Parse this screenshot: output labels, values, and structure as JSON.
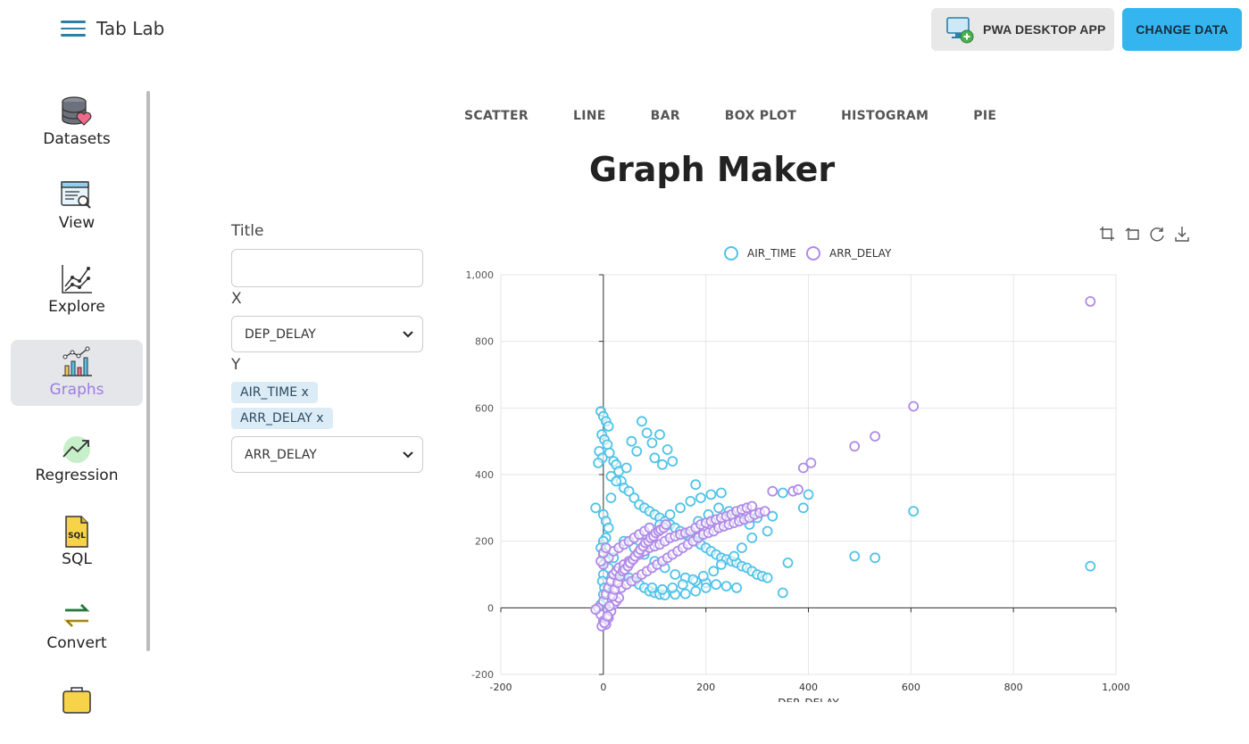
{
  "app": {
    "title": "Tab Lab"
  },
  "header": {
    "pwa_label": "PWA DESKTOP APP",
    "change_label": "CHANGE DATA"
  },
  "sidebar": {
    "items": [
      {
        "label": "Datasets",
        "icon": "database-heart-icon"
      },
      {
        "label": "View",
        "icon": "view-document-search-icon"
      },
      {
        "label": "Explore",
        "icon": "explore-line-chart-icon"
      },
      {
        "label": "Graphs",
        "icon": "graphs-bar-chart-icon",
        "active": true
      },
      {
        "label": "Regression",
        "icon": "regression-trend-icon"
      },
      {
        "label": "SQL",
        "icon": "sql-file-icon"
      },
      {
        "label": "Convert",
        "icon": "convert-arrows-icon"
      }
    ]
  },
  "tabs": [
    "SCATTER",
    "LINE",
    "BAR",
    "BOX PLOT",
    "HISTOGRAM",
    "PIE"
  ],
  "page_title": "Graph Maker",
  "form": {
    "title_label": "Title",
    "title_value": "",
    "x_label": "X",
    "x_value": "DEP_DELAY",
    "y_label": "Y",
    "y_chips": [
      "AIR_TIME x",
      "ARR_DELAY x"
    ],
    "y_select_value": "ARR_DELAY"
  },
  "colors": {
    "accent": "#35b5f0",
    "air_time": "#4fc3e8",
    "arr_delay": "#b08ae8",
    "active_nav": "#9b7de0"
  },
  "chart_data": {
    "type": "scatter",
    "title": "",
    "xlabel": "DEP_DELAY",
    "ylabel": "",
    "xlim": [
      -200,
      1000
    ],
    "ylim": [
      -200,
      1000
    ],
    "x_ticks": [
      "-200",
      "0",
      "200",
      "400",
      "600",
      "800",
      "1,000"
    ],
    "y_ticks": [
      "-200",
      "0",
      "200",
      "400",
      "600",
      "800",
      "1,000"
    ],
    "legend": [
      "AIR_TIME",
      "ARR_DELAY"
    ],
    "legend_position": "top-center",
    "grid": true,
    "series": [
      {
        "name": "AIR_TIME",
        "color": "#4fc3e8",
        "points": [
          [
            -5,
            590
          ],
          [
            0,
            575
          ],
          [
            5,
            560
          ],
          [
            10,
            545
          ],
          [
            -3,
            520
          ],
          [
            2,
            505
          ],
          [
            8,
            490
          ],
          [
            -8,
            470
          ],
          [
            12,
            465
          ],
          [
            -2,
            450
          ],
          [
            20,
            440
          ],
          [
            25,
            430
          ],
          [
            30,
            410
          ],
          [
            -10,
            435
          ],
          [
            15,
            395
          ],
          [
            35,
            380
          ],
          [
            40,
            360
          ],
          [
            -15,
            300
          ],
          [
            0,
            280
          ],
          [
            5,
            260
          ],
          [
            10,
            240
          ],
          [
            50,
            350
          ],
          [
            60,
            330
          ],
          [
            70,
            310
          ],
          [
            80,
            300
          ],
          [
            90,
            290
          ],
          [
            100,
            280
          ],
          [
            110,
            270
          ],
          [
            120,
            260
          ],
          [
            130,
            250
          ],
          [
            140,
            240
          ],
          [
            150,
            230
          ],
          [
            160,
            220
          ],
          [
            170,
            210
          ],
          [
            180,
            200
          ],
          [
            190,
            190
          ],
          [
            200,
            180
          ],
          [
            210,
            170
          ],
          [
            220,
            160
          ],
          [
            230,
            150
          ],
          [
            240,
            145
          ],
          [
            250,
            140
          ],
          [
            260,
            135
          ],
          [
            270,
            125
          ],
          [
            280,
            120
          ],
          [
            290,
            110
          ],
          [
            300,
            100
          ],
          [
            310,
            95
          ],
          [
            320,
            90
          ],
          [
            40,
            200
          ],
          [
            60,
            180
          ],
          [
            80,
            160
          ],
          [
            100,
            140
          ],
          [
            120,
            120
          ],
          [
            140,
            100
          ],
          [
            160,
            90
          ],
          [
            180,
            80
          ],
          [
            200,
            75
          ],
          [
            220,
            70
          ],
          [
            240,
            65
          ],
          [
            260,
            60
          ],
          [
            70,
            220
          ],
          [
            90,
            240
          ],
          [
            110,
            250
          ],
          [
            130,
            280
          ],
          [
            150,
            300
          ],
          [
            170,
            320
          ],
          [
            190,
            330
          ],
          [
            210,
            340
          ],
          [
            230,
            345
          ],
          [
            20,
            150
          ],
          [
            30,
            120
          ],
          [
            40,
            100
          ],
          [
            50,
            90
          ],
          [
            60,
            80
          ],
          [
            70,
            70
          ],
          [
            80,
            60
          ],
          [
            90,
            50
          ],
          [
            100,
            45
          ],
          [
            110,
            40
          ],
          [
            120,
            38
          ],
          [
            140,
            40
          ],
          [
            160,
            42
          ],
          [
            180,
            50
          ],
          [
            200,
            60
          ],
          [
            75,
            560
          ],
          [
            85,
            525
          ],
          [
            110,
            520
          ],
          [
            95,
            495
          ],
          [
            125,
            475
          ],
          [
            100,
            450
          ],
          [
            115,
            430
          ],
          [
            135,
            440
          ],
          [
            55,
            500
          ],
          [
            65,
            470
          ],
          [
            45,
            420
          ],
          [
            25,
            380
          ],
          [
            15,
            330
          ],
          [
            5,
            210
          ],
          [
            0,
            200
          ],
          [
            -5,
            180
          ],
          [
            0,
            160
          ],
          [
            5,
            140
          ],
          [
            10,
            120
          ],
          [
            0,
            100
          ],
          [
            -2,
            80
          ],
          [
            2,
            60
          ],
          [
            0,
            40
          ],
          [
            5,
            20
          ],
          [
            -5,
            10
          ],
          [
            350,
            345
          ],
          [
            400,
            340
          ],
          [
            390,
            300
          ],
          [
            360,
            135
          ],
          [
            350,
            45
          ],
          [
            490,
            155
          ],
          [
            530,
            150
          ],
          [
            605,
            290
          ],
          [
            950,
            125
          ],
          [
            330,
            275
          ],
          [
            300,
            270
          ],
          [
            320,
            230
          ],
          [
            290,
            210
          ],
          [
            270,
            180
          ],
          [
            255,
            155
          ],
          [
            230,
            130
          ],
          [
            215,
            110
          ],
          [
            195,
            95
          ],
          [
            175,
            85
          ],
          [
            155,
            70
          ],
          [
            135,
            60
          ],
          [
            115,
            55
          ],
          [
            95,
            60
          ],
          [
            185,
            260
          ],
          [
            205,
            280
          ],
          [
            225,
            300
          ],
          [
            245,
            290
          ],
          [
            265,
            270
          ],
          [
            285,
            250
          ],
          [
            180,
            370
          ]
        ]
      },
      {
        "name": "ARR_DELAY",
        "color": "#b08ae8",
        "points": [
          [
            -10,
            0
          ],
          [
            -5,
            -20
          ],
          [
            0,
            -40
          ],
          [
            5,
            -50
          ],
          [
            10,
            -30
          ],
          [
            15,
            -10
          ],
          [
            20,
            10
          ],
          [
            25,
            20
          ],
          [
            30,
            30
          ],
          [
            -15,
            -5
          ],
          [
            0,
            20
          ],
          [
            5,
            40
          ],
          [
            10,
            60
          ],
          [
            15,
            80
          ],
          [
            20,
            100
          ],
          [
            25,
            110
          ],
          [
            30,
            120
          ],
          [
            40,
            130
          ],
          [
            50,
            140
          ],
          [
            60,
            150
          ],
          [
            70,
            160
          ],
          [
            80,
            170
          ],
          [
            90,
            180
          ],
          [
            100,
            185
          ],
          [
            110,
            190
          ],
          [
            120,
            200
          ],
          [
            130,
            210
          ],
          [
            140,
            215
          ],
          [
            150,
            220
          ],
          [
            160,
            225
          ],
          [
            170,
            230
          ],
          [
            180,
            240
          ],
          [
            190,
            250
          ],
          [
            200,
            255
          ],
          [
            210,
            260
          ],
          [
            220,
            265
          ],
          [
            230,
            270
          ],
          [
            240,
            275
          ],
          [
            250,
            280
          ],
          [
            260,
            290
          ],
          [
            270,
            295
          ],
          [
            280,
            300
          ],
          [
            290,
            305
          ],
          [
            0,
            130
          ],
          [
            10,
            150
          ],
          [
            20,
            170
          ],
          [
            30,
            180
          ],
          [
            40,
            190
          ],
          [
            50,
            200
          ],
          [
            60,
            210
          ],
          [
            70,
            220
          ],
          [
            80,
            230
          ],
          [
            90,
            240
          ],
          [
            -5,
            140
          ],
          [
            0,
            165
          ],
          [
            5,
            180
          ],
          [
            35,
            60
          ],
          [
            45,
            70
          ],
          [
            55,
            80
          ],
          [
            65,
            90
          ],
          [
            75,
            100
          ],
          [
            85,
            110
          ],
          [
            95,
            120
          ],
          [
            105,
            130
          ],
          [
            115,
            140
          ],
          [
            125,
            150
          ],
          [
            135,
            160
          ],
          [
            145,
            170
          ],
          [
            155,
            180
          ],
          [
            165,
            190
          ],
          [
            175,
            200
          ],
          [
            185,
            210
          ],
          [
            195,
            220
          ],
          [
            205,
            225
          ],
          [
            215,
            230
          ],
          [
            225,
            240
          ],
          [
            235,
            245
          ],
          [
            245,
            250
          ],
          [
            255,
            255
          ],
          [
            265,
            260
          ],
          [
            275,
            265
          ],
          [
            285,
            270
          ],
          [
            295,
            280
          ],
          [
            305,
            285
          ],
          [
            315,
            290
          ],
          [
            330,
            350
          ],
          [
            370,
            350
          ],
          [
            380,
            355
          ],
          [
            390,
            420
          ],
          [
            405,
            435
          ],
          [
            490,
            485
          ],
          [
            530,
            515
          ],
          [
            605,
            605
          ],
          [
            950,
            920
          ],
          [
            -3,
            -55
          ],
          [
            2,
            -45
          ],
          [
            8,
            -25
          ],
          [
            12,
            5
          ],
          [
            18,
            35
          ],
          [
            22,
            55
          ],
          [
            28,
            75
          ],
          [
            32,
            95
          ],
          [
            38,
            110
          ],
          [
            42,
            115
          ],
          [
            48,
            125
          ],
          [
            52,
            135
          ],
          [
            58,
            145
          ],
          [
            62,
            155
          ],
          [
            68,
            165
          ],
          [
            72,
            175
          ],
          [
            78,
            185
          ],
          [
            82,
            195
          ],
          [
            88,
            200
          ],
          [
            92,
            210
          ],
          [
            98,
            215
          ],
          [
            102,
            225
          ],
          [
            108,
            230
          ],
          [
            112,
            235
          ],
          [
            118,
            240
          ],
          [
            122,
            250
          ]
        ]
      }
    ]
  }
}
